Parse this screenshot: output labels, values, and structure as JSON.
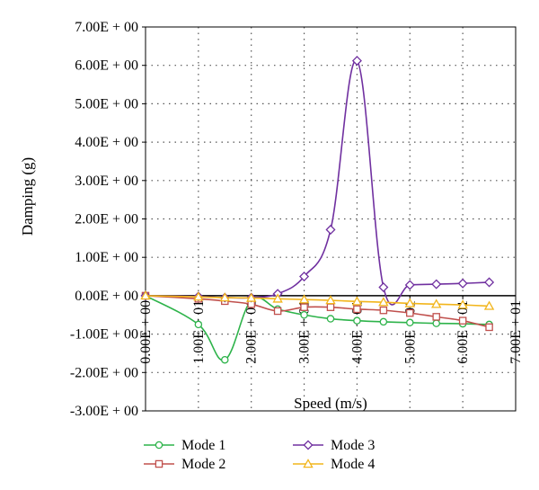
{
  "chart_data": {
    "type": "line",
    "title": "",
    "xlabel": "Speed (m/s)",
    "ylabel": "Damping (g)",
    "xlim": [
      0,
      70
    ],
    "ylim": [
      -3,
      7
    ],
    "grid": true,
    "legend_position": "bottom",
    "x_tick_labels": [
      "0.00E + 00",
      "1.00E + 01",
      "2.00E + 01",
      "3.00E + 01",
      "4.00E + 01",
      "5.00E + 01",
      "6.00E + 01",
      "7.00E + 01"
    ],
    "x_tick_values": [
      0,
      10,
      20,
      30,
      40,
      50,
      60,
      70
    ],
    "y_tick_labels": [
      "7.00E + 00",
      "6.00E + 00",
      "5.00E + 00",
      "4.00E + 00",
      "3.00E + 00",
      "2.00E + 00",
      "1.00E + 00",
      "0.00E + 00",
      "-1.00E + 00",
      "-2.00E + 00",
      "-3.00E + 00"
    ],
    "y_tick_values": [
      7,
      6,
      5,
      4,
      3,
      2,
      1,
      0,
      -1,
      -2,
      -3
    ],
    "series": [
      {
        "name": "Mode 1",
        "color": "#2db34a",
        "marker": "circle",
        "x": [
          0,
          10,
          15,
          20,
          25,
          30,
          35,
          40,
          45,
          50,
          55,
          60,
          65
        ],
        "y": [
          0,
          -0.75,
          -1.67,
          -0.12,
          -0.35,
          -0.5,
          -0.6,
          -0.65,
          -0.68,
          -0.7,
          -0.72,
          -0.73,
          -0.75
        ]
      },
      {
        "name": "Mode 2",
        "color": "#c0504d",
        "marker": "square",
        "x": [
          0,
          10,
          15,
          20,
          25,
          30,
          35,
          40,
          45,
          50,
          55,
          60,
          65
        ],
        "y": [
          0,
          -0.08,
          -0.14,
          -0.22,
          -0.4,
          -0.3,
          -0.3,
          -0.35,
          -0.38,
          -0.45,
          -0.55,
          -0.65,
          -0.82
        ]
      },
      {
        "name": "Mode 3",
        "color": "#7030a0",
        "marker": "diamond",
        "x": [
          0,
          10,
          15,
          20,
          25,
          30,
          35,
          40,
          45,
          50,
          55,
          60,
          65
        ],
        "y": [
          0,
          -0.02,
          -0.05,
          -0.05,
          0.05,
          0.5,
          1.72,
          6.12,
          0.22,
          0.28,
          0.3,
          0.32,
          0.35
        ]
      },
      {
        "name": "Mode 4",
        "color": "#f2b51b",
        "marker": "triangle",
        "x": [
          0,
          10,
          15,
          20,
          25,
          30,
          35,
          40,
          45,
          50,
          55,
          60,
          65
        ],
        "y": [
          0,
          -0.03,
          -0.05,
          -0.06,
          -0.08,
          -0.1,
          -0.12,
          -0.15,
          -0.17,
          -0.2,
          -0.22,
          -0.24,
          -0.27
        ]
      }
    ]
  }
}
